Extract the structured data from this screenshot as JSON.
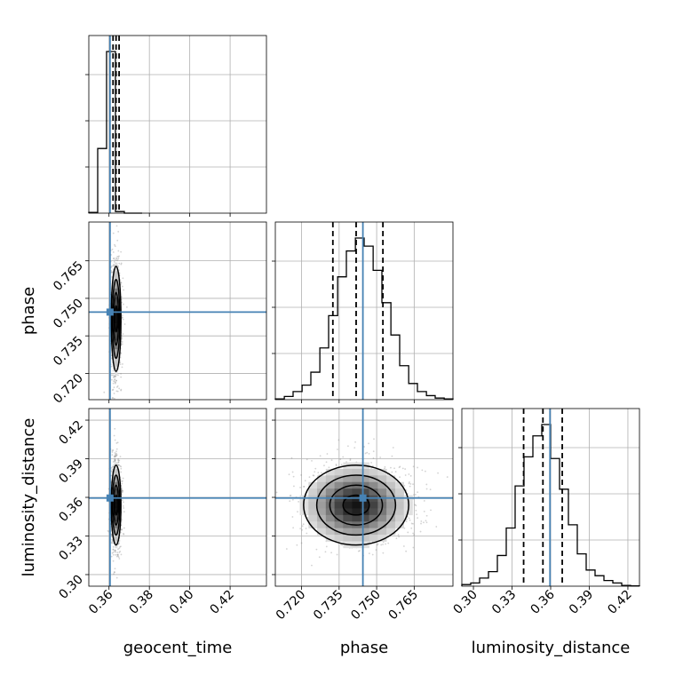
{
  "chart_data": {
    "type": "corner",
    "parameters": [
      "geocent_time",
      "phase",
      "luminosity_distance"
    ],
    "truth": {
      "geocent_time": 0.3605,
      "phase": 0.7445,
      "luminosity_distance": 0.3595
    },
    "quantiles": {
      "geocent_time": [
        0.362,
        0.3635,
        0.365
      ],
      "phase": [
        0.7325,
        0.7418,
        0.7525
      ],
      "luminosity_distance": [
        0.339,
        0.354,
        0.369
      ]
    },
    "ranges": {
      "geocent_time": [
        0.35,
        0.438
      ],
      "phase": [
        0.7095,
        0.7805
      ],
      "luminosity_distance": [
        0.291,
        0.429
      ]
    },
    "ticks": {
      "geocent_time": [
        "0.36",
        "0.38",
        "0.40",
        "0.42"
      ],
      "phase": [
        "0.720",
        "0.735",
        "0.750",
        "0.765"
      ],
      "luminosity_distance": [
        "0.30",
        "0.33",
        "0.36",
        "0.39",
        "0.42"
      ]
    },
    "tick_values": {
      "geocent_time": [
        0.36,
        0.38,
        0.4,
        0.42
      ],
      "phase": [
        0.72,
        0.735,
        0.75,
        0.765
      ],
      "luminosity_distance": [
        0.3,
        0.33,
        0.36,
        0.39,
        0.42
      ]
    },
    "hist_1d": {
      "geocent_time": {
        "edges": [
          0.35,
          0.3544,
          0.3588,
          0.3632,
          0.3676,
          0.372,
          0.3764
        ],
        "counts": [
          0.005,
          0.4,
          1.0,
          0.01,
          0.0,
          0.0
        ]
      },
      "phase": {
        "edges": [
          0.7095,
          0.7131,
          0.7166,
          0.7202,
          0.7237,
          0.7273,
          0.7308,
          0.7344,
          0.7379,
          0.7415,
          0.745,
          0.7486,
          0.7521,
          0.7557,
          0.7592,
          0.7628,
          0.7663,
          0.7699,
          0.7734,
          0.777,
          0.7805
        ],
        "counts": [
          0.005,
          0.02,
          0.05,
          0.09,
          0.17,
          0.32,
          0.52,
          0.76,
          0.92,
          1.0,
          0.95,
          0.8,
          0.6,
          0.4,
          0.21,
          0.1,
          0.05,
          0.025,
          0.01,
          0.005
        ]
      },
      "luminosity_distance": {
        "edges": [
          0.291,
          0.2979,
          0.3048,
          0.3117,
          0.3186,
          0.3255,
          0.3324,
          0.3393,
          0.3462,
          0.3531,
          0.36,
          0.3669,
          0.3738,
          0.3807,
          0.3876,
          0.3945,
          0.4014,
          0.4083,
          0.4152,
          0.4221,
          0.429
        ],
        "counts": [
          0.01,
          0.02,
          0.05,
          0.09,
          0.19,
          0.36,
          0.62,
          0.8,
          0.93,
          1.0,
          0.79,
          0.6,
          0.38,
          0.2,
          0.1,
          0.065,
          0.035,
          0.02,
          0.005,
          0.002
        ]
      }
    },
    "center_2d": {
      "phase_vs_geocent_time": {
        "x": 0.3635,
        "y": 0.7418,
        "sx": 0.0012,
        "sy": 0.0105
      },
      "luminosity_distance_vs_geocent_time": {
        "x": 0.3635,
        "y": 0.354,
        "sx": 0.0012,
        "sy": 0.0155
      },
      "luminosity_distance_vs_phase": {
        "x": 0.7418,
        "y": 0.354,
        "sx": 0.0105,
        "sy": 0.0155
      }
    },
    "grid": true,
    "colors": {
      "truth": "#4682b4",
      "hist": "#000000",
      "grid": "#b0b0b0",
      "scatter": "#808080"
    }
  }
}
